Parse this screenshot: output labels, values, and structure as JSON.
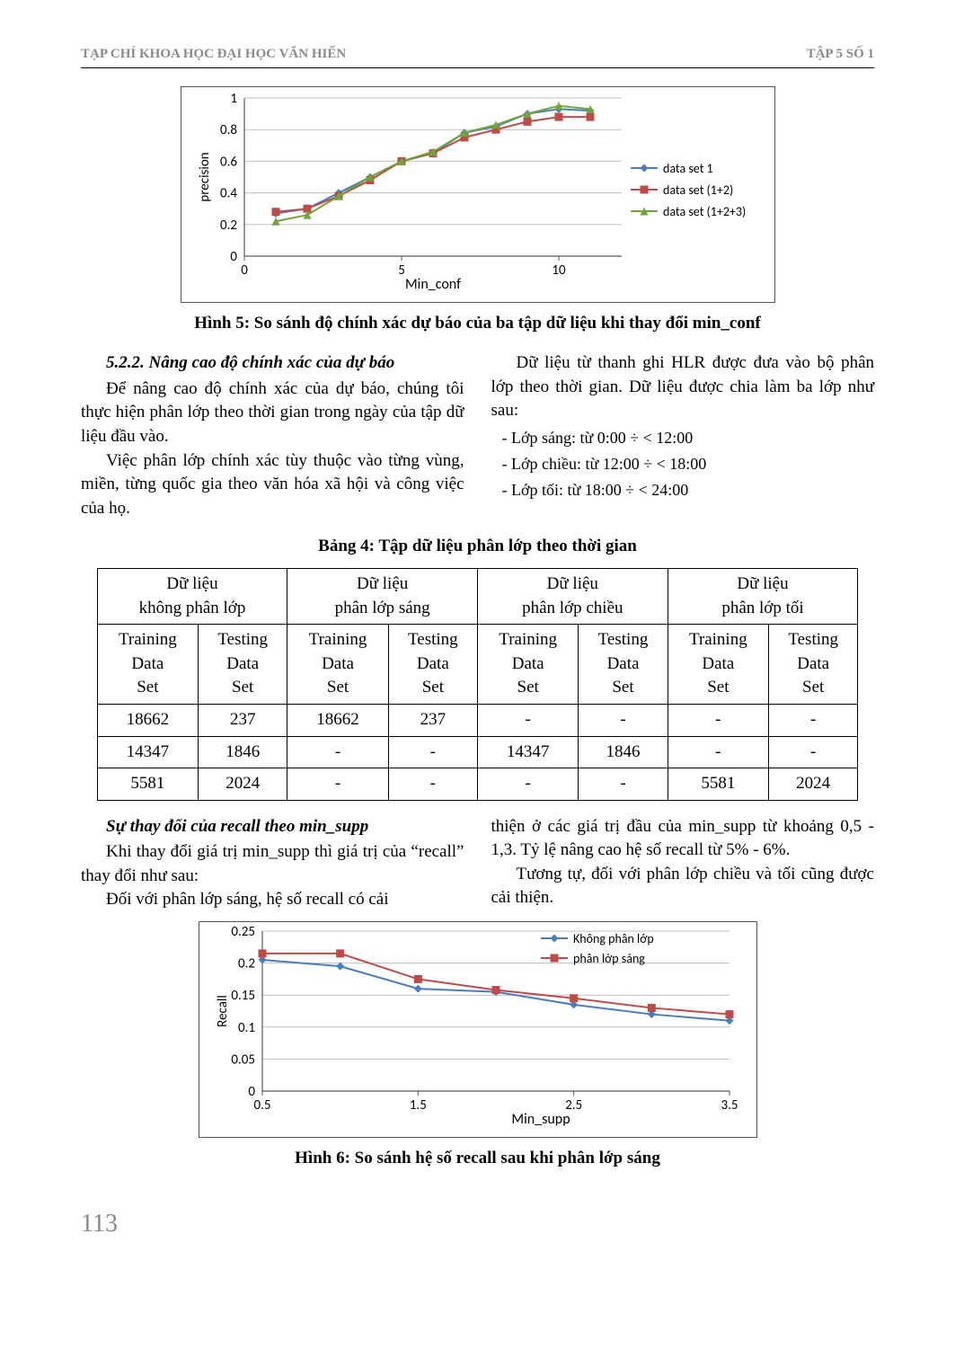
{
  "header": {
    "journal": "TẠP CHÍ KHOA HỌC ĐẠI HỌC VĂN HIẾN",
    "issue": "TẬP 5  SỐ 1"
  },
  "chart1": {
    "type": "line",
    "xlabel": "Min_conf",
    "ylabel": "precision",
    "xlim": [
      0,
      12
    ],
    "ylim": [
      0,
      1
    ],
    "xticks": [
      0,
      5,
      10
    ],
    "yticks": [
      0,
      0.2,
      0.4,
      0.6,
      0.8,
      1
    ],
    "grid_color": "#bfbfbf",
    "border_color": "#595959",
    "plot_bg": "#ffffff",
    "title_fontsize": 15,
    "tick_fontsize": 15,
    "x_values": [
      1,
      2,
      3,
      4,
      5,
      6,
      7,
      8,
      9,
      10,
      11
    ],
    "series": [
      {
        "name": "data set 1",
        "color": "#4a7ebb",
        "marker": "diamond",
        "y": [
          0.27,
          0.3,
          0.4,
          0.5,
          0.6,
          0.65,
          0.78,
          0.82,
          0.9,
          0.93,
          0.92
        ]
      },
      {
        "name": "data set (1+2)",
        "color": "#be4b48",
        "marker": "square",
        "y": [
          0.28,
          0.3,
          0.38,
          0.48,
          0.6,
          0.65,
          0.75,
          0.8,
          0.85,
          0.88,
          0.88
        ]
      },
      {
        "name": "data set (1+2+3)",
        "color": "#71a43c",
        "marker": "triangle",
        "y": [
          0.22,
          0.26,
          0.38,
          0.5,
          0.6,
          0.66,
          0.78,
          0.83,
          0.9,
          0.95,
          0.93
        ]
      }
    ],
    "legend_pos": "right"
  },
  "caption1": "Hình 5: So sánh độ chính xác dự báo của ba tập dữ liệu khi thay đổi min_conf",
  "section": {
    "heading": "5.2.2. Nâng cao độ chính xác của dự báo",
    "leftParas": [
      "Để nâng cao độ chính xác của dự báo, chúng tôi thực hiện phân lớp theo thời gian trong ngày của tập dữ liệu  đầu vào.",
      "Việc phân lớp chính xác tùy thuộc vào từng vùng, miền, từng quốc gia theo văn hóa xã hội và công việc của họ."
    ],
    "rightPara": "Dữ liệu từ thanh ghi HLR được đưa vào bộ phân lớp theo thời gian. Dữ liệu được chia làm ba lớp như sau:",
    "bullets": [
      "- Lớp sáng: từ 0:00 ÷ < 12:00",
      "- Lớp chiều: từ 12:00 ÷ < 18:00",
      "- Lớp tối: từ 18:00 ÷ < 24:00"
    ]
  },
  "tableCaption": "Bảng 4: Tập dữ liệu phân lớp theo thời gian",
  "table": {
    "groups": [
      "Dữ liệu\nkhông phân lớp",
      "Dữ liệu\nphân lớp sáng",
      "Dữ liệu\nphân lớp chiều",
      "Dữ liệu\nphân lớp tối"
    ],
    "subheaders": [
      "Training Data Set",
      "Testing Data Set",
      "Training Data Set",
      "Testing Data Set",
      "Training Data Set",
      "Testing Data Set",
      "Training Data Set",
      "Testing Data Set"
    ],
    "rows": [
      [
        "18662",
        "237",
        "18662",
        "237",
        "-",
        "-",
        "-",
        "-"
      ],
      [
        "14347",
        "1846",
        "-",
        "-",
        "14347",
        "1846",
        "-",
        "-"
      ],
      [
        "5581",
        "2024",
        "-",
        "-",
        "-",
        "-",
        "5581",
        "2024"
      ]
    ]
  },
  "section2": {
    "heading": "Sự thay đổi của recall theo min_supp",
    "leftParas": [
      "Khi thay đổi giá trị min_supp thì giá trị của “recall” thay đổi như sau:",
      "Đối với phân lớp sáng, hệ số recall có cải"
    ],
    "rightParas": [
      "thiện ở các giá trị đầu của min_supp từ khoảng 0,5 - 1,3. Tỷ lệ nâng cao hệ số recall từ 5% - 6%.",
      "Tương tự, đối với phân lớp chiều và tối cũng được cải thiện."
    ]
  },
  "chart2": {
    "type": "line",
    "xlabel": "Min_supp",
    "ylabel": "Recall",
    "xlim": [
      0.5,
      3.5
    ],
    "ylim": [
      0,
      0.25
    ],
    "xticks": [
      0.5,
      1.5,
      2.5,
      3.5
    ],
    "yticks": [
      0,
      0.05,
      0.1,
      0.15,
      0.2,
      0.25
    ],
    "grid_color": "#bfbfbf",
    "border_color": "#595959",
    "plot_bg": "#ffffff",
    "tick_fontsize": 15,
    "x_values": [
      0.5,
      1.0,
      1.5,
      2.0,
      2.5,
      3.0,
      3.5
    ],
    "series": [
      {
        "name": "Không phân lớp",
        "color": "#4a7ebb",
        "marker": "diamond",
        "y": [
          0.205,
          0.195,
          0.16,
          0.155,
          0.135,
          0.12,
          0.11
        ]
      },
      {
        "name": "phân lớp sáng",
        "color": "#be4b48",
        "marker": "square",
        "y": [
          0.215,
          0.215,
          0.175,
          0.158,
          0.145,
          0.13,
          0.12
        ]
      }
    ],
    "legend_pos": "top-right-inside"
  },
  "caption2": "Hình 6: So sánh hệ số recall sau khi phân lớp sáng",
  "pageNumber": "113"
}
